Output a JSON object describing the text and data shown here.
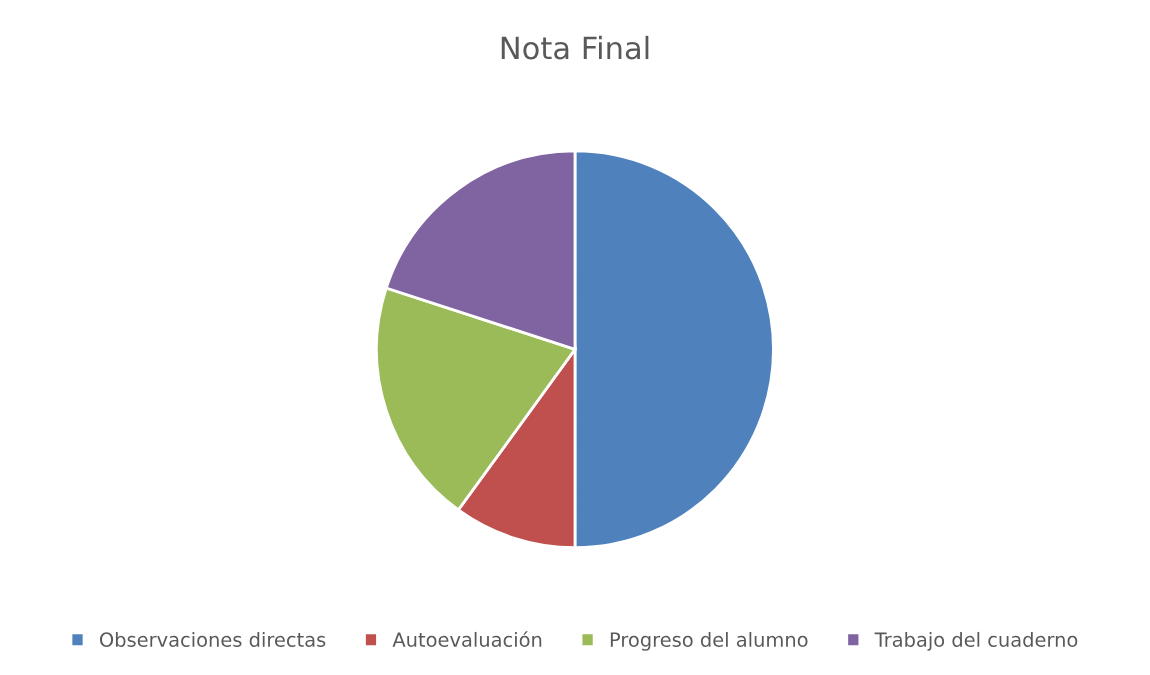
{
  "chart_data": {
    "type": "pie",
    "title": "Nota Final",
    "categories": [
      "Observaciones directas",
      "Autoevaluación",
      "Progreso del alumno",
      "Trabajo del cuaderno"
    ],
    "values": [
      50,
      10,
      20,
      20
    ],
    "colors": [
      "#4f81bd",
      "#c0504d",
      "#9bbb59",
      "#8064a2"
    ],
    "legend": "bottom"
  }
}
